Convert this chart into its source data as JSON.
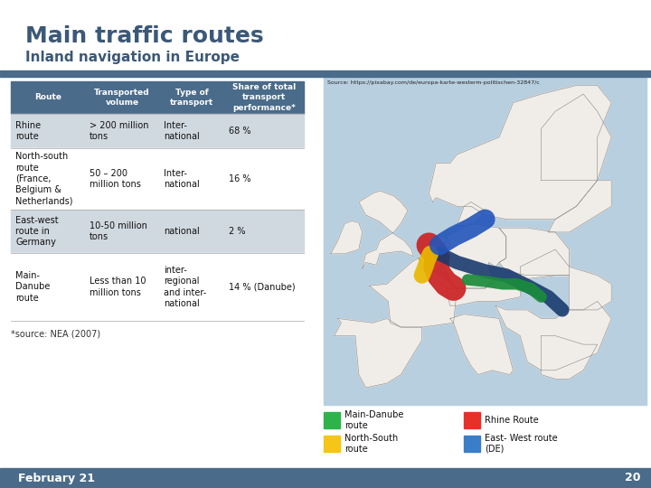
{
  "title": "Main traffic routes",
  "subtitle": "Inland navigation in Europe",
  "title_color": "#3b5878",
  "subtitle_color": "#3b5878",
  "divider_color": "#4a6b8a",
  "header_bg": "#4a6b8a",
  "header_text_color": "#ffffff",
  "row_bg_odd": "#d0d8e0",
  "row_bg_even": "#ffffff",
  "col_headers": [
    "Route",
    "Transported\nvolume",
    "Type of\ntransport",
    "Share of total\ntransport\nperformance*"
  ],
  "rows": [
    [
      "Rhine\nroute",
      "> 200 million\ntons",
      "Inter-\nnational",
      "68 %"
    ],
    [
      "North-south\nroute\n(France,\nBelgium &\nNetherlands)",
      "50 – 200\nmillion tons",
      "Inter-\nnational",
      "16 %"
    ],
    [
      "East-west\nroute in\nGermany",
      "10-50 million\ntons",
      "national",
      "2 %"
    ],
    [
      "Main-\nDanube\nroute",
      "Less than 10\nmillion tons",
      "inter-\nregional\nand inter-\nnational",
      "14 % (Danube)"
    ]
  ],
  "source_note": "*source: NEA (2007)",
  "map_source": "Source: https://pixabay.com/de/europa-karte-westerm-politischen-32847/c",
  "legend_items": [
    {
      "color": "#2db34a",
      "label": "Main-Danube\nroute"
    },
    {
      "color": "#e8302a",
      "label": "Rhine Route"
    },
    {
      "color": "#f5c518",
      "label": "North-South\nroute"
    },
    {
      "color": "#3a7dc9",
      "label": "East- West route\n(DE)"
    }
  ],
  "footer_bg": "#4a6b8a",
  "footer_text": "February 21",
  "footer_number": "20",
  "footer_text_color": "#ffffff",
  "background_color": "#ffffff",
  "map_bg": "#b8cfe0",
  "land_color": "#f0ede8",
  "land_border": "#888888",
  "route_rhine": "#cc2222",
  "route_ns_yellow": "#e8b800",
  "route_ns_blue": "#2255bb",
  "route_ew": "#1a3a6e",
  "route_danube": "#1a8c3a"
}
